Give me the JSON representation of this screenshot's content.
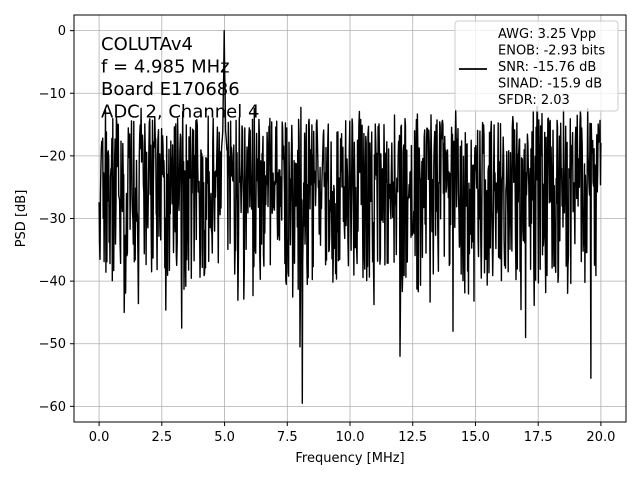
{
  "chart_data": {
    "type": "line",
    "xlabel": "Frequency [MHz]",
    "ylabel": "PSD [dB]",
    "xlim": [
      -1,
      21
    ],
    "ylim": [
      -62.5,
      2.5
    ],
    "xticks": [
      0.0,
      2.5,
      5.0,
      7.5,
      10.0,
      12.5,
      15.0,
      17.5,
      20.0
    ],
    "xtick_labels": [
      "0.0",
      "2.5",
      "5.0",
      "7.5",
      "10.0",
      "12.5",
      "15.0",
      "17.5",
      "20.0"
    ],
    "yticks": [
      0,
      -10,
      -20,
      -30,
      -40,
      -50,
      -60
    ],
    "ytick_labels": [
      "0",
      "−10",
      "−20",
      "−30",
      "−40",
      "−50",
      "−60"
    ],
    "grid": true,
    "legend_position": "top-right",
    "line_color": "#000000",
    "annotations": [
      "COLUTAv4",
      "f = 4.985 MHz",
      "Board E170686",
      "ADC 2, Channel 4"
    ],
    "legend_entries": [
      "AWG: 3.25 Vpp",
      "ENOB: -2.93 bits",
      "SNR: -15.76 dB",
      "SINAD: -15.9 dB",
      "SFDR: 2.03"
    ],
    "series": [
      {
        "values_description_x_range": [
          0,
          20
        ],
        "peak": {
          "x": 4.985,
          "y": 0
        },
        "typical_band": [
          -35,
          -15
        ],
        "notable_dips": [
          {
            "x": 8.1,
            "y": -59.5
          },
          {
            "x": 19.6,
            "y": -55.5
          },
          {
            "x": 12.0,
            "y": -52
          },
          {
            "x": 8.0,
            "y": -50.5
          },
          {
            "x": 17.0,
            "y": -49
          },
          {
            "x": 3.3,
            "y": -47.5
          },
          {
            "x": 14.1,
            "y": -48
          },
          {
            "x": 1.0,
            "y": -45
          }
        ]
      }
    ]
  }
}
